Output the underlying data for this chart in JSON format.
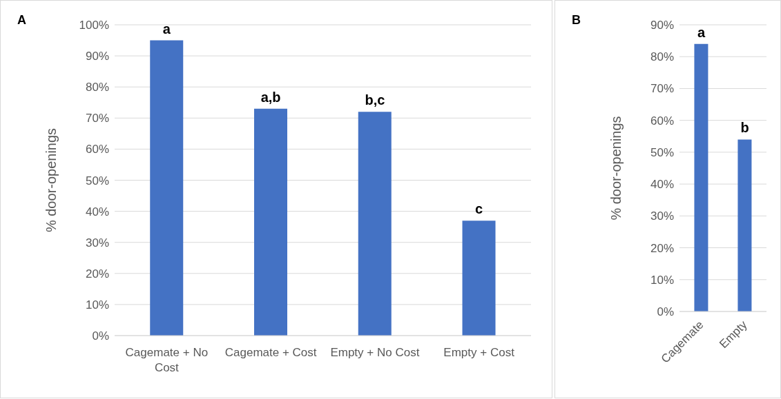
{
  "chart_data": [
    {
      "type": "bar",
      "title": "A",
      "categories": [
        "Cagemate + No Cost",
        "Cagemate + Cost",
        "Empty + No Cost",
        "Empty + Cost"
      ],
      "values": [
        95,
        73,
        72,
        37
      ],
      "color": "#4472c4",
      "ylabel": "% door-openings",
      "ylim": [
        0,
        100
      ],
      "yticks": [
        {
          "value": 0,
          "label": "0%"
        },
        {
          "value": 10,
          "label": "10%"
        },
        {
          "value": 20,
          "label": "20%"
        },
        {
          "value": 30,
          "label": "30%"
        },
        {
          "value": 40,
          "label": "40%"
        },
        {
          "value": 50,
          "label": "50%"
        },
        {
          "value": 60,
          "label": "60%"
        },
        {
          "value": 70,
          "label": "70%"
        },
        {
          "value": 80,
          "label": "80%"
        },
        {
          "value": 90,
          "label": "90%"
        },
        {
          "value": 100,
          "label": "100%"
        }
      ],
      "grid": "y",
      "annotations": [
        {
          "text": "a",
          "x": "Cagemate + No Cost",
          "y": 95
        },
        {
          "text": "a,b",
          "x": "Cagemate + Cost",
          "y": 73
        },
        {
          "text": "b,c",
          "x": "Empty + No Cost",
          "y": 72
        },
        {
          "text": "c",
          "x": "Empty + Cost",
          "y": 37
        }
      ]
    },
    {
      "type": "bar",
      "title": "B",
      "categories": [
        "Cagemate",
        "Empty"
      ],
      "values": [
        84,
        54
      ],
      "color": "#4472c4",
      "ylabel": "% door-openings",
      "ylim": [
        0,
        90
      ],
      "yticks": [
        {
          "value": 0,
          "label": "0%"
        },
        {
          "value": 10,
          "label": "10%"
        },
        {
          "value": 20,
          "label": "20%"
        },
        {
          "value": 30,
          "label": "30%"
        },
        {
          "value": 40,
          "label": "40%"
        },
        {
          "value": 50,
          "label": "50%"
        },
        {
          "value": 60,
          "label": "60%"
        },
        {
          "value": 70,
          "label": "70%"
        },
        {
          "value": 80,
          "label": "80%"
        },
        {
          "value": 90,
          "label": "90%"
        }
      ],
      "grid": "y",
      "annotations": [
        {
          "text": "a",
          "x": "Cagemate",
          "y": 84
        },
        {
          "text": "b",
          "x": "Empty",
          "y": 54
        }
      ]
    }
  ]
}
